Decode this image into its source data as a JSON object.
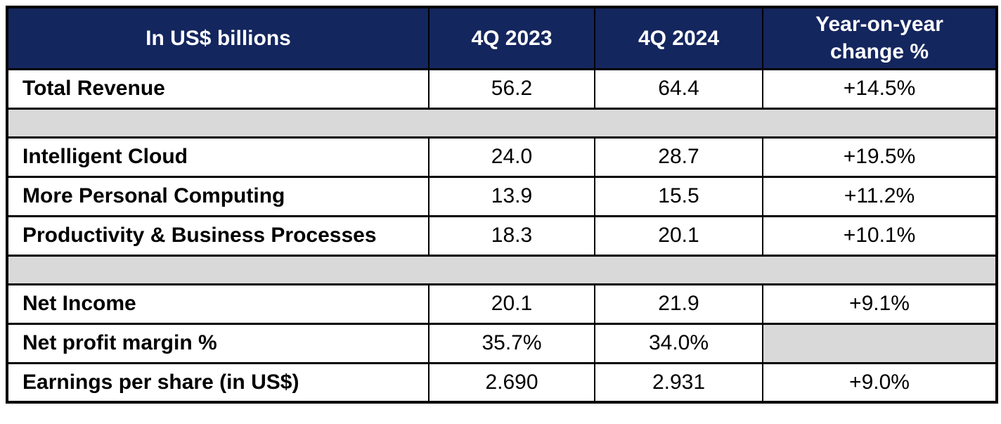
{
  "table": {
    "columns": [
      {
        "id": "metric",
        "label": "In US$ billions"
      },
      {
        "id": "q4_2023",
        "label": "4Q 2023"
      },
      {
        "id": "q4_2024",
        "label": "4Q 2024"
      },
      {
        "id": "yoy",
        "label": "Year-on-year change %"
      }
    ],
    "rows": [
      {
        "type": "data",
        "label": "Total Revenue",
        "q4_2023": "56.2",
        "q4_2024": "64.4",
        "yoy": "+14.5%"
      },
      {
        "type": "spacer"
      },
      {
        "type": "data",
        "label": "Intelligent Cloud",
        "q4_2023": "24.0",
        "q4_2024": "28.7",
        "yoy": "+19.5%"
      },
      {
        "type": "data",
        "label": "More Personal Computing",
        "q4_2023": "13.9",
        "q4_2024": "15.5",
        "yoy": "+11.2%"
      },
      {
        "type": "data",
        "label": "Productivity & Business Processes",
        "q4_2023": "18.3",
        "q4_2024": "20.1",
        "yoy": "+10.1%"
      },
      {
        "type": "spacer"
      },
      {
        "type": "data",
        "label": "Net Income",
        "q4_2023": "20.1",
        "q4_2024": "21.9",
        "yoy": "+9.1%"
      },
      {
        "type": "data",
        "label": "Net profit margin %",
        "q4_2023": "35.7%",
        "q4_2024": "34.0%",
        "yoy": null,
        "yoy_gray_blank": true
      },
      {
        "type": "data",
        "label": "Earnings per share (in US$)",
        "q4_2023": "2.690",
        "q4_2024": "2.931",
        "yoy": "+9.0%"
      }
    ]
  },
  "chart_data": {
    "type": "table",
    "title": "In US$ billions",
    "columns": [
      "In US$ billions",
      "4Q 2023",
      "4Q 2024",
      "Year-on-year change %"
    ],
    "rows": [
      [
        "Total Revenue",
        56.2,
        64.4,
        "+14.5%"
      ],
      [
        "Intelligent Cloud",
        24.0,
        28.7,
        "+19.5%"
      ],
      [
        "More Personal Computing",
        13.9,
        15.5,
        "+11.2%"
      ],
      [
        "Productivity & Business Processes",
        18.3,
        20.1,
        "+10.1%"
      ],
      [
        "Net Income",
        20.1,
        21.9,
        "+9.1%"
      ],
      [
        "Net profit margin %",
        "35.7%",
        "34.0%",
        ""
      ],
      [
        "Earnings per share (in US$)",
        "2.690",
        "2.931",
        "+9.0%"
      ]
    ]
  },
  "colors": {
    "header_bg": "#14265E",
    "header_text": "#FFFFFF",
    "spacer_bg": "#D9D9D9",
    "border": "#000000",
    "row_bg": "#FFFFFF",
    "text": "#000000"
  }
}
